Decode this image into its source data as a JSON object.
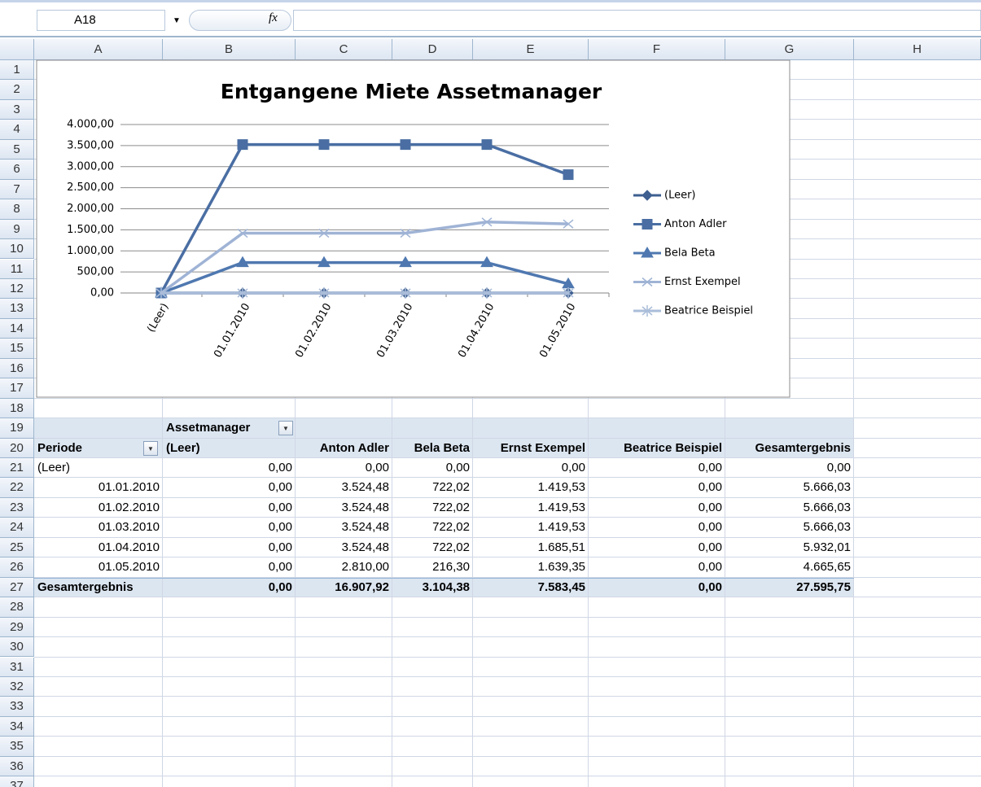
{
  "toolbar": {
    "name_box": "A18",
    "fx": "fx"
  },
  "columns": [
    "A",
    "B",
    "C",
    "D",
    "E",
    "F",
    "G",
    "H"
  ],
  "rows": [
    1,
    2,
    3,
    4,
    5,
    6,
    7,
    8,
    9,
    10,
    11,
    12,
    13,
    14,
    15,
    16,
    17,
    18,
    19,
    20,
    21,
    22,
    23,
    24,
    25,
    26,
    27,
    28,
    29,
    30,
    31,
    32,
    33,
    34,
    35,
    36,
    37
  ],
  "chart_data": {
    "type": "line",
    "title": "Entgangene Miete Assetmanager",
    "categories": [
      "(Leer)",
      "01.01.2010",
      "01.02.2010",
      "01.03.2010",
      "01.04.2010",
      "01.05.2010"
    ],
    "series": [
      {
        "name": "(Leer)",
        "color": "#3e5f90",
        "marker": "diamond",
        "values": [
          0,
          0,
          0,
          0,
          0,
          0
        ]
      },
      {
        "name": "Anton Adler",
        "color": "#4a6ea3",
        "marker": "square",
        "values": [
          0,
          3524.48,
          3524.48,
          3524.48,
          3524.48,
          2810.0
        ]
      },
      {
        "name": "Bela Beta",
        "color": "#4f78b0",
        "marker": "triangle",
        "values": [
          0,
          722.02,
          722.02,
          722.02,
          722.02,
          216.3
        ]
      },
      {
        "name": "Ernst Exempel",
        "color": "#9fb3d5",
        "marker": "x",
        "values": [
          0,
          1419.53,
          1419.53,
          1419.53,
          1685.51,
          1639.35
        ]
      },
      {
        "name": "Beatrice Beispiel",
        "color": "#aabdd9",
        "marker": "star",
        "values": [
          0,
          0,
          0,
          0,
          0,
          0
        ]
      }
    ],
    "ylim": [
      0,
      4000
    ],
    "yticks": [
      {
        "value": 0,
        "label": "0,00"
      },
      {
        "value": 500,
        "label": "500,00"
      },
      {
        "value": 1000,
        "label": "1.000,00"
      },
      {
        "value": 1500,
        "label": "1.500,00"
      },
      {
        "value": 2000,
        "label": "2.000,00"
      },
      {
        "value": 2500,
        "label": "2.500,00"
      },
      {
        "value": 3000,
        "label": "3.000,00"
      },
      {
        "value": 3500,
        "label": "3.500,00"
      },
      {
        "value": 4000,
        "label": "4.000,00"
      }
    ],
    "grid": true,
    "legend": "right"
  },
  "pivot": {
    "filter_label": "Assetmanager",
    "header": [
      "Periode",
      "(Leer)",
      "Anton Adler",
      "Bela Beta",
      "Ernst Exempel",
      "Beatrice Beispiel",
      "Gesamtergebnis"
    ],
    "rows": [
      [
        "(Leer)",
        "0,00",
        "0,00",
        "0,00",
        "0,00",
        "0,00",
        "0,00"
      ],
      [
        "01.01.2010",
        "0,00",
        "3.524,48",
        "722,02",
        "1.419,53",
        "0,00",
        "5.666,03"
      ],
      [
        "01.02.2010",
        "0,00",
        "3.524,48",
        "722,02",
        "1.419,53",
        "0,00",
        "5.666,03"
      ],
      [
        "01.03.2010",
        "0,00",
        "3.524,48",
        "722,02",
        "1.419,53",
        "0,00",
        "5.666,03"
      ],
      [
        "01.04.2010",
        "0,00",
        "3.524,48",
        "722,02",
        "1.685,51",
        "0,00",
        "5.932,01"
      ],
      [
        "01.05.2010",
        "0,00",
        "2.810,00",
        "216,30",
        "1.639,35",
        "0,00",
        "4.665,65"
      ]
    ],
    "total": [
      "Gesamtergebnis",
      "0,00",
      "16.907,92",
      "3.104,38",
      "7.583,45",
      "0,00",
      "27.595,75"
    ]
  }
}
